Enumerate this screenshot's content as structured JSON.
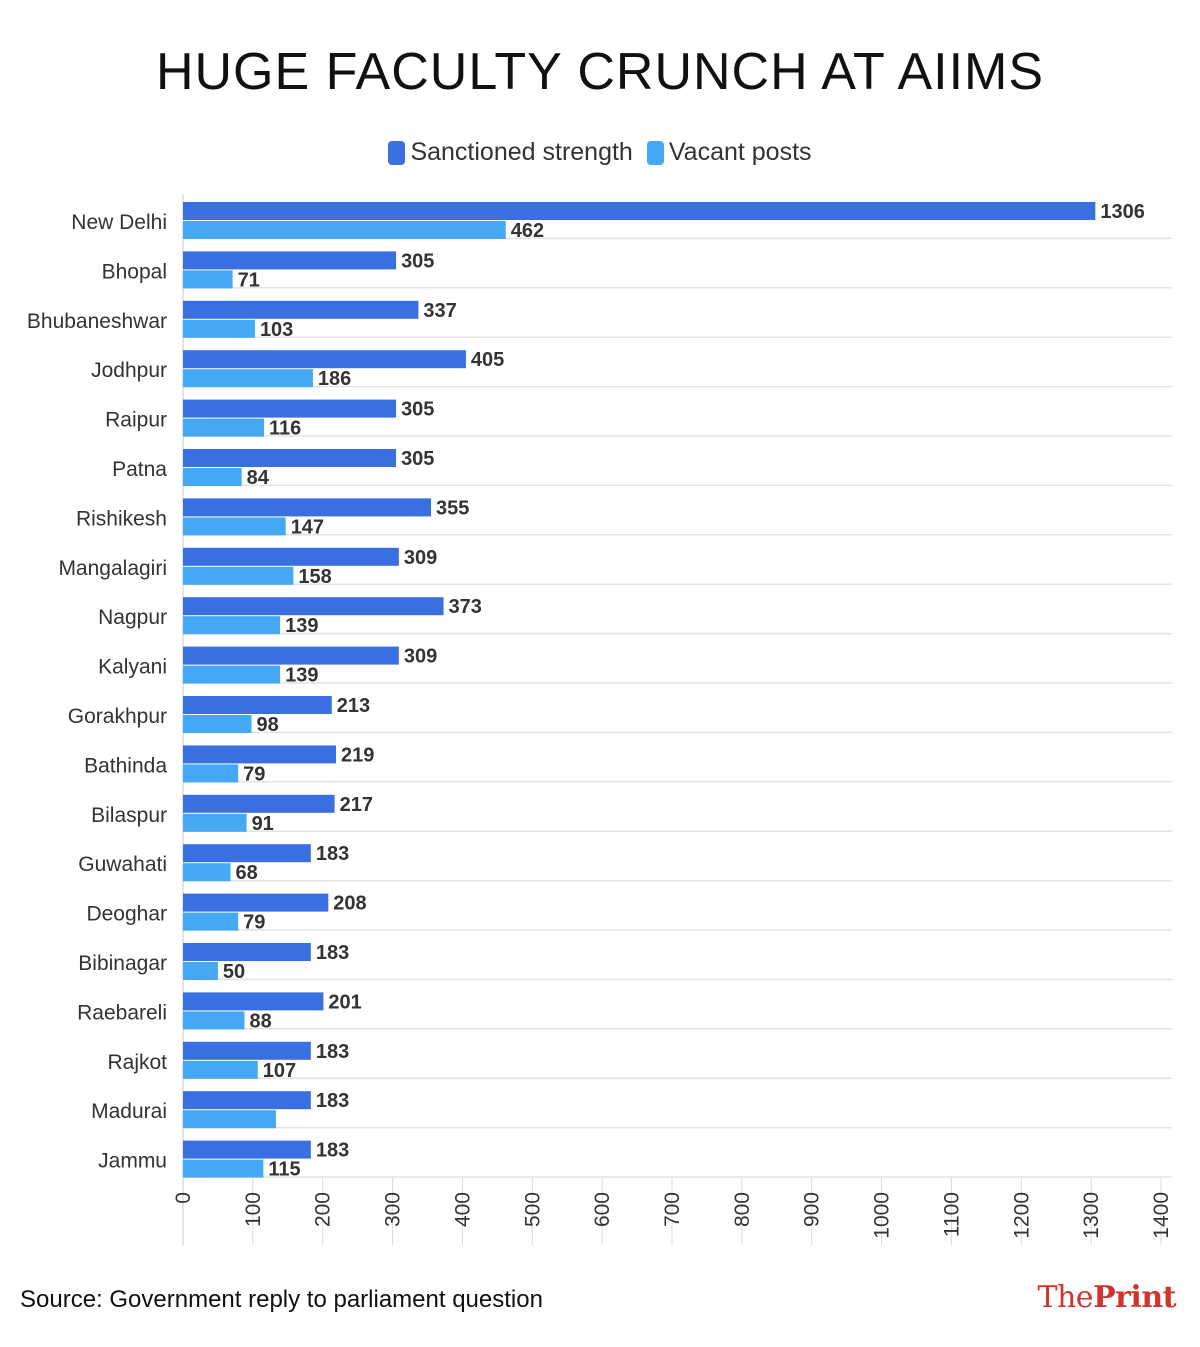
{
  "chart_data": {
    "type": "bar",
    "orientation": "horizontal",
    "title": "HUGE FACULTY CRUNCH AT AIIMS",
    "categories": [
      "New Delhi",
      "Bhopal",
      "Bhubaneshwar",
      "Jodhpur",
      "Raipur",
      "Patna",
      "Rishikesh",
      "Mangalagiri",
      "Nagpur",
      "Kalyani",
      "Gorakhpur",
      "Bathinda",
      "Bilaspur",
      "Guwahati",
      "Deoghar",
      "Bibinagar",
      "Raebareli",
      "Rajkot",
      "Madurai",
      "Jammu"
    ],
    "series": [
      {
        "name": "Sanctioned strength",
        "color": "#3a6fe2",
        "values": [
          1306,
          305,
          337,
          405,
          305,
          305,
          355,
          309,
          373,
          309,
          213,
          219,
          217,
          183,
          208,
          183,
          201,
          183,
          183,
          183
        ],
        "labels": [
          "1306",
          "305",
          "337",
          "405",
          "305",
          "305",
          "355",
          "309",
          "373",
          "309",
          "213",
          "219",
          "217",
          "183",
          "208",
          "183",
          "201",
          "183",
          "183",
          "183"
        ]
      },
      {
        "name": "Vacant posts",
        "color": "#45a8f5",
        "values": [
          462,
          71,
          103,
          186,
          116,
          84,
          147,
          158,
          139,
          139,
          98,
          79,
          91,
          68,
          79,
          50,
          88,
          107,
          133,
          115
        ],
        "labels": [
          "462",
          "71",
          "103",
          "186",
          "116",
          "84",
          "147",
          "158",
          "139",
          "139",
          "98",
          "79",
          "91",
          "68",
          "79",
          "50",
          "88",
          "107",
          "",
          "115"
        ]
      }
    ],
    "xlim": [
      0,
      1400
    ],
    "xticks": [
      "0",
      "100",
      "200",
      "300",
      "400",
      "500",
      "600",
      "700",
      "800",
      "900",
      "1000",
      "1100",
      "1200",
      "1300",
      "1400"
    ],
    "xtick_values": [
      0,
      100,
      200,
      300,
      400,
      500,
      600,
      700,
      800,
      900,
      1000,
      1100,
      1200,
      1300,
      1400
    ],
    "grid": true,
    "legend": "top-center"
  },
  "source": "Source: Government reply to parliament question",
  "logo": {
    "part1": "The",
    "part2": "Print",
    "color": "#d1342a"
  }
}
